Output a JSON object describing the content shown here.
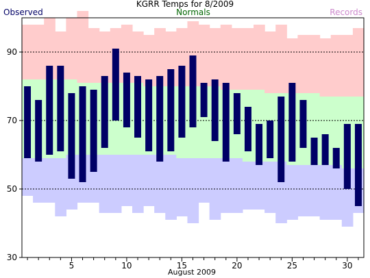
{
  "chart_data": {
    "type": "bar",
    "title": "KGRR Temps for 8/2009",
    "xlabel": "August 2009",
    "legend": [
      {
        "label": "Observed",
        "color": "#000066",
        "position": "left"
      },
      {
        "label": "Normals",
        "color": "#006600",
        "position": "center"
      },
      {
        "label": "Records",
        "color": "#cc88cc",
        "position": "right"
      }
    ],
    "colors": {
      "record_band": "#ffcccc",
      "normal_band": "#ccffcc",
      "below_band": "#ccccff",
      "observed": "#000066"
    },
    "ylim": [
      30,
      100
    ],
    "yticks": [
      30,
      50,
      70,
      90
    ],
    "dashed_grid": [
      50,
      70,
      90
    ],
    "xlim": [
      0.5,
      31.5
    ],
    "xticks": [
      5,
      10,
      15,
      20,
      25,
      30
    ],
    "days": [
      1,
      2,
      3,
      4,
      5,
      6,
      7,
      8,
      9,
      10,
      11,
      12,
      13,
      14,
      15,
      16,
      17,
      18,
      19,
      20,
      21,
      22,
      23,
      24,
      25,
      26,
      27,
      28,
      29,
      30,
      31
    ],
    "observed_high": [
      80,
      76,
      86,
      86,
      78,
      80,
      79,
      83,
      91,
      84,
      83,
      82,
      83,
      85,
      86,
      89,
      81,
      82,
      81,
      78,
      74,
      69,
      70,
      77,
      81,
      76,
      65,
      66,
      62,
      69,
      69
    ],
    "observed_low": [
      59,
      58,
      60,
      61,
      53,
      52,
      55,
      62,
      70,
      68,
      65,
      61,
      58,
      61,
      65,
      68,
      71,
      64,
      58,
      66,
      61,
      57,
      59,
      52,
      58,
      62,
      57,
      57,
      56,
      50,
      45
    ],
    "normal_high": [
      82,
      82,
      82,
      82,
      82,
      81,
      81,
      81,
      81,
      81,
      81,
      80,
      80,
      80,
      80,
      80,
      80,
      80,
      79,
      79,
      79,
      79,
      78,
      78,
      78,
      78,
      78,
      77,
      77,
      77,
      77
    ],
    "normal_low": [
      59,
      59,
      59,
      59,
      60,
      60,
      60,
      60,
      60,
      60,
      60,
      60,
      60,
      60,
      59,
      59,
      59,
      59,
      59,
      59,
      58,
      58,
      58,
      58,
      57,
      57,
      57,
      57,
      57,
      56,
      56
    ],
    "record_high": [
      98,
      98,
      100,
      96,
      100,
      102,
      97,
      96,
      97,
      98,
      96,
      95,
      97,
      96,
      97,
      99,
      98,
      97,
      98,
      97,
      97,
      98,
      96,
      98,
      94,
      95,
      95,
      94,
      95,
      95,
      97
    ],
    "record_low": [
      48,
      46,
      46,
      42,
      44,
      46,
      46,
      43,
      43,
      45,
      43,
      45,
      43,
      41,
      42,
      40,
      46,
      41,
      43,
      43,
      44,
      44,
      43,
      40,
      41,
      42,
      42,
      41,
      41,
      39,
      43
    ]
  }
}
